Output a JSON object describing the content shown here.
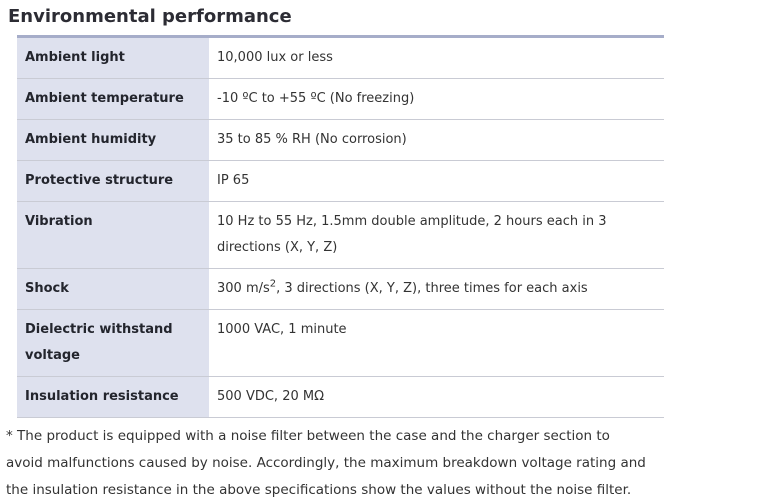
{
  "page": {
    "title": "Environmental performance"
  },
  "colors": {
    "label_cell_bg": "#dee1ee",
    "table_top_border": "#a6adc9",
    "row_divider": "#c9cbd4",
    "title_text": "#2c2c34",
    "label_text": "#23252d",
    "value_text": "#333333"
  },
  "table": {
    "rows": [
      {
        "label": "Ambient light",
        "value_parts": [
          {
            "t": "text",
            "s": "10,000 lux or less"
          }
        ]
      },
      {
        "label": "Ambient temperature",
        "value_parts": [
          {
            "t": "text",
            "s": "-10 ºC to +55 ºC (No freezing)"
          }
        ]
      },
      {
        "label": "Ambient humidity",
        "value_parts": [
          {
            "t": "text",
            "s": "35 to 85 % RH (No corrosion)"
          }
        ]
      },
      {
        "label": "Protective structure",
        "value_parts": [
          {
            "t": "text",
            "s": "IP 65"
          }
        ]
      },
      {
        "label": "Vibration",
        "value_parts": [
          {
            "t": "text",
            "s": "10 Hz to 55 Hz, 1.5mm double amplitude, 2 hours each in 3 directions (X, Y, Z)"
          }
        ]
      },
      {
        "label": "Shock",
        "value_parts": [
          {
            "t": "text",
            "s": "300 m/s"
          },
          {
            "t": "sup",
            "s": "2"
          },
          {
            "t": "text",
            "s": ", 3 directions (X, Y, Z), three times for each axis"
          }
        ]
      },
      {
        "label": "Dielectric withstand voltage",
        "value_parts": [
          {
            "t": "text",
            "s": "1000 VAC, 1 minute"
          }
        ]
      },
      {
        "label": "Insulation resistance",
        "value_parts": [
          {
            "t": "text",
            "s": "500 VDC, 20 MΩ"
          }
        ]
      }
    ]
  },
  "footnote": {
    "lines": [
      "* The product is equipped with a noise filter between the case and the charger section to",
      "avoid malfunctions caused by noise. Accordingly, the maximum breakdown voltage rating and",
      "the insulation resistance in the above specifications show the values without the noise filter."
    ]
  }
}
